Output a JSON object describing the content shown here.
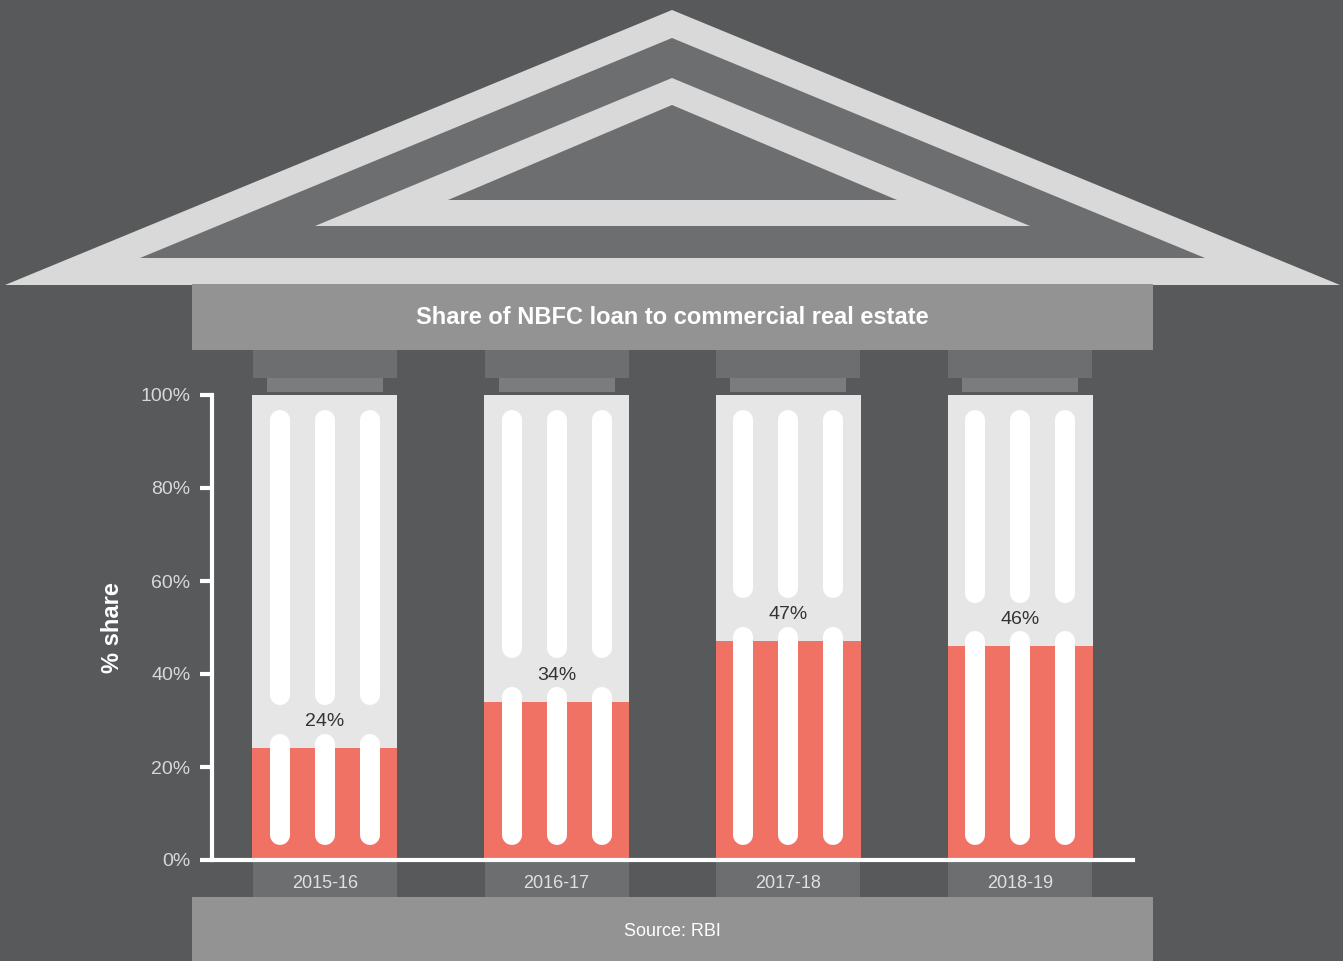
{
  "chart_data": {
    "type": "bar",
    "title": "Share of NBFC loan to commercial real estate",
    "y_label": "% share",
    "source": "Source: RBI",
    "categories": [
      "2015-16",
      "2016-17",
      "2017-18",
      "2018-19"
    ],
    "values": [
      24,
      34,
      47,
      46
    ],
    "value_labels": [
      "24%",
      "34%",
      "47%",
      "46%"
    ],
    "color": "#f07265",
    "data_labels": true,
    "ylim": [
      0,
      100
    ],
    "yticks": [
      {
        "value": 0,
        "label": "0%"
      },
      {
        "value": 20,
        "label": "20%"
      },
      {
        "value": 40,
        "label": "40%"
      },
      {
        "value": 60,
        "label": "60%"
      },
      {
        "value": 80,
        "label": "80%"
      },
      {
        "value": 100,
        "label": "100%"
      }
    ]
  }
}
